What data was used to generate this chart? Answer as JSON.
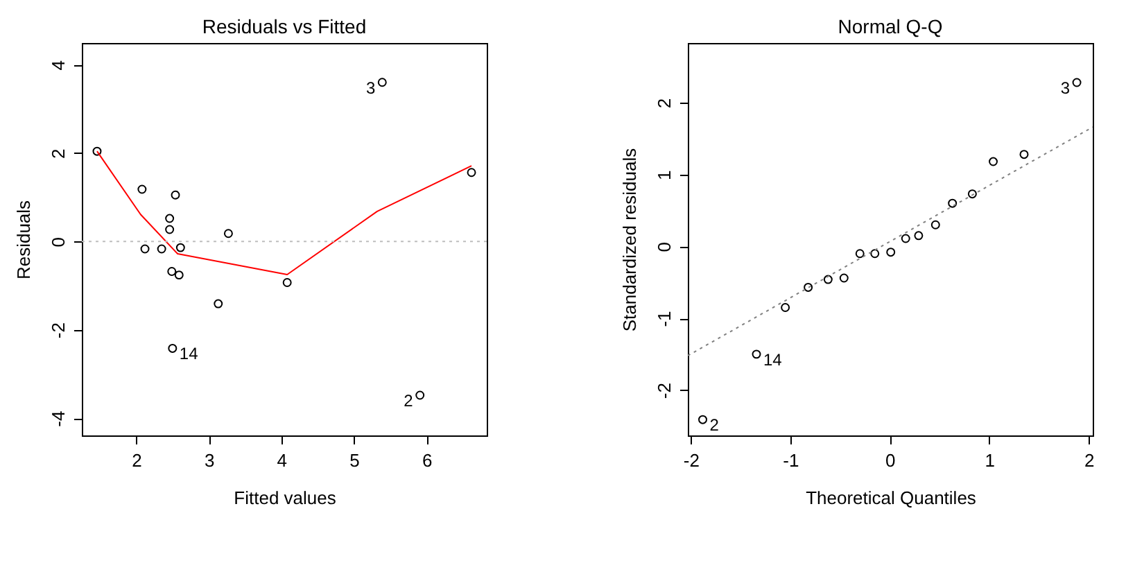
{
  "chart_data": [
    {
      "type": "scatter",
      "title": "Residuals vs Fitted",
      "xlabel": "Fitted values",
      "ylabel": "Residuals",
      "xlim": [
        1.25,
        6.83
      ],
      "ylim": [
        -4.39,
        4.49
      ],
      "xticks": [
        2,
        3,
        4,
        5,
        6
      ],
      "yticks": [
        -4,
        -2,
        0,
        2,
        4
      ],
      "grid": false,
      "series": [
        {
          "color": "#000000",
          "marker": "circle",
          "x": [
            1.46,
            2.08,
            2.54,
            2.46,
            2.46,
            3.27,
            2.12,
            2.35,
            2.61,
            2.49,
            2.59,
            3.13,
            4.08,
            2.5,
            5.39,
            5.91,
            6.62
          ],
          "values": [
            2.04,
            1.18,
            1.05,
            0.52,
            0.27,
            0.18,
            -0.17,
            -0.17,
            -0.14,
            -0.68,
            -0.76,
            -1.41,
            -0.93,
            -2.42,
            3.6,
            -3.48,
            1.56
          ]
        },
        {
          "type": "line",
          "color": "#ff0000",
          "line_style": "solid",
          "x": [
            1.46,
            2.06,
            2.57,
            4.08,
            5.32,
            6.62
          ],
          "values": [
            2.04,
            0.61,
            -0.28,
            -0.75,
            0.68,
            1.71
          ]
        }
      ],
      "ref_lines": [
        {
          "axis": "y",
          "value": 0,
          "color": "#bebebe",
          "line_style": "dotted"
        }
      ],
      "annotations": [
        {
          "text": "3",
          "x": 5.39,
          "y": 3.6
        },
        {
          "text": "2",
          "x": 5.91,
          "y": -3.48
        },
        {
          "text": "14",
          "x": 2.5,
          "y": -2.42
        }
      ]
    },
    {
      "type": "scatter",
      "title": "Normal Q-Q",
      "xlabel": "Theoretical Quantiles",
      "ylabel": "Standardized residuals",
      "xlim": [
        -2.03,
        2.04
      ],
      "ylim": [
        -2.63,
        2.83
      ],
      "xticks": [
        -2,
        -1,
        0,
        1,
        2
      ],
      "yticks": [
        -2,
        -1,
        0,
        1,
        2
      ],
      "grid": false,
      "series": [
        {
          "color": "#000000",
          "marker": "circle",
          "x": [
            -1.88,
            -1.34,
            -1.05,
            -0.82,
            -0.62,
            -0.46,
            -0.3,
            -0.15,
            0.01,
            0.16,
            0.29,
            0.46,
            0.63,
            0.83,
            1.04,
            1.35,
            1.88
          ],
          "values": [
            -2.41,
            -1.5,
            -0.85,
            -0.57,
            -0.46,
            -0.44,
            -0.1,
            -0.1,
            -0.08,
            0.11,
            0.15,
            0.3,
            0.6,
            0.73,
            1.18,
            1.28,
            2.28
          ]
        },
        {
          "type": "line",
          "color": "#808080",
          "line_style": "dotted",
          "x": [
            -2.03,
            2.04
          ],
          "values": [
            -1.52,
            1.66
          ]
        }
      ],
      "annotations": [
        {
          "text": "3",
          "x": 1.88,
          "y": 2.28
        },
        {
          "text": "14",
          "x": -1.34,
          "y": -1.5
        },
        {
          "text": "2",
          "x": -1.88,
          "y": -2.41
        }
      ]
    }
  ]
}
